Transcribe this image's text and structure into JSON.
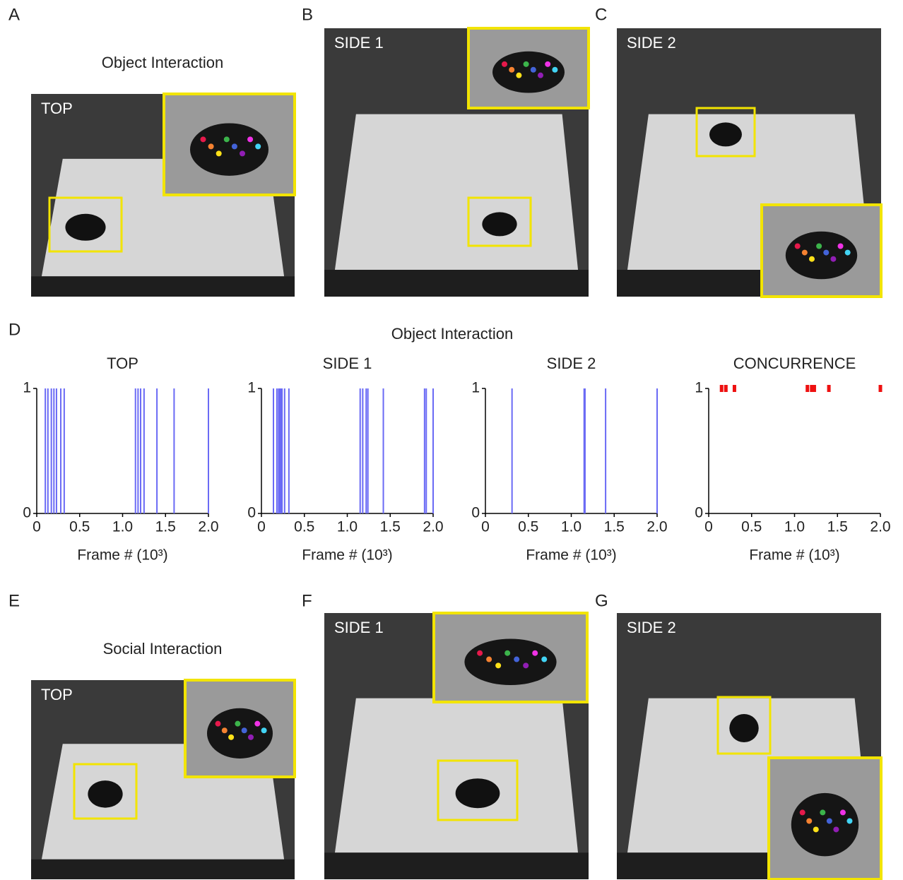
{
  "panels": [
    {
      "letter": "A",
      "heading": "Object Interaction",
      "view": "TOP"
    },
    {
      "letter": "B",
      "view": "SIDE 1"
    },
    {
      "letter": "C",
      "view": "SIDE 2"
    },
    {
      "letter": "E",
      "heading": "Social Interaction",
      "view": "TOP"
    },
    {
      "letter": "F",
      "view": "SIDE 1"
    },
    {
      "letter": "G",
      "view": "SIDE 2"
    }
  ],
  "panel_d": {
    "letter": "D",
    "title": "Object Interaction"
  },
  "chart_data": [
    {
      "type": "event",
      "title": "TOP",
      "xlabel": "Frame # (10³)",
      "color": "#6a6af5",
      "x": [
        0.1,
        0.13,
        0.17,
        0.2,
        0.23,
        0.28,
        0.32,
        1.15,
        1.18,
        1.21,
        1.25,
        1.4,
        1.6,
        2.0
      ],
      "values": [
        1,
        1,
        1,
        1,
        1,
        1,
        1,
        1,
        1,
        1,
        1,
        1,
        1,
        1
      ],
      "xlim": [
        0,
        2
      ],
      "xticks": [
        0,
        0.5,
        {
          "value": 1,
          "label": "1.0"
        },
        1.5,
        {
          "value": 2,
          "label": "2.0"
        }
      ],
      "ylim": [
        0,
        1
      ],
      "yticks": [
        0,
        1
      ]
    },
    {
      "type": "event",
      "title": "SIDE 1",
      "xlabel": "Frame # (10³)",
      "color": "#6a6af5",
      "x": [
        0.14,
        0.18,
        0.2,
        0.21,
        0.22,
        0.23,
        0.24,
        0.27,
        0.32,
        1.15,
        1.18,
        1.22,
        1.24,
        1.42,
        1.9,
        1.92,
        2.0
      ],
      "values": [
        1,
        1,
        1,
        1,
        1,
        1,
        1,
        1,
        1,
        1,
        1,
        1,
        1,
        1,
        1,
        1,
        1
      ],
      "xlim": [
        0,
        2
      ],
      "xticks": [
        0,
        0.5,
        {
          "value": 1,
          "label": "1.0"
        },
        1.5,
        {
          "value": 2,
          "label": "2.0"
        }
      ],
      "ylim": [
        0,
        1
      ],
      "yticks": [
        0,
        1
      ]
    },
    {
      "type": "event",
      "title": "SIDE 2",
      "xlabel": "Frame # (10³)",
      "color": "#6a6af5",
      "x": [
        0.31,
        1.15,
        1.16,
        1.4,
        2.0
      ],
      "values": [
        1,
        1,
        1,
        1,
        1
      ],
      "xlim": [
        0,
        2
      ],
      "xticks": [
        0,
        0.5,
        {
          "value": 1,
          "label": "1.0"
        },
        1.5,
        {
          "value": 2,
          "label": "2.0"
        }
      ],
      "ylim": [
        0,
        1
      ],
      "yticks": [
        0,
        1
      ]
    },
    {
      "type": "scatter",
      "title": "CONCURRENCE",
      "xlabel": "Frame # (10³)",
      "color": "#ee1111",
      "x": [
        0.15,
        0.2,
        0.3,
        1.15,
        1.2,
        1.23,
        1.4,
        2.0
      ],
      "values": [
        1,
        1,
        1,
        1,
        1,
        1,
        1,
        1
      ],
      "xlim": [
        0,
        2
      ],
      "xticks": [
        0,
        0.5,
        {
          "value": 1,
          "label": "1.0"
        },
        1.5,
        {
          "value": 2,
          "label": "2.0"
        }
      ],
      "ylim": [
        0,
        1
      ],
      "yticks": [
        0,
        1
      ]
    }
  ]
}
